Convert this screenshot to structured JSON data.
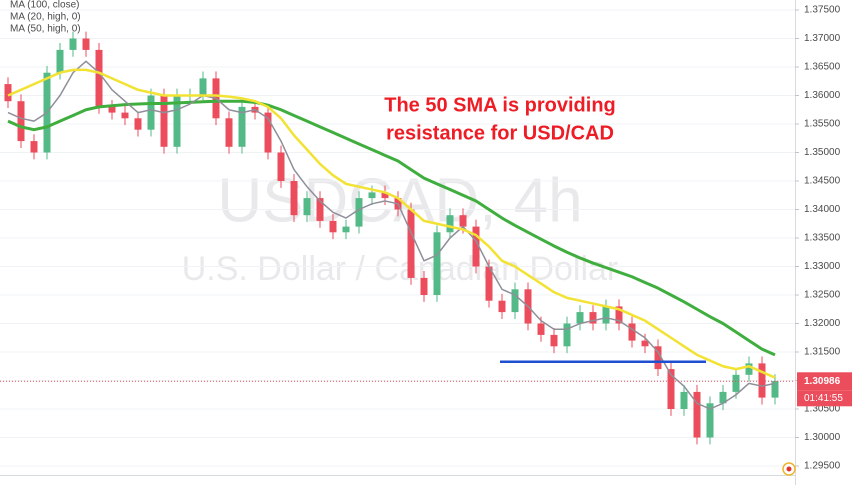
{
  "chart_data": {
    "type": "candlestick",
    "watermark": "USDCAD, 4h",
    "watermark_sub": "U.S. Dollar / Canadian Dollar",
    "annotation": [
      "The 50 SMA is providing",
      "resistance for USD/CAD"
    ],
    "open": [
      1.362,
      1.359,
      1.352,
      1.35,
      1.364,
      1.368,
      1.37,
      1.368,
      1.358,
      1.357,
      1.356,
      1.354,
      1.36,
      1.351,
      1.36,
      1.36,
      1.363,
      1.356,
      1.351,
      1.358,
      1.357,
      1.35,
      1.345,
      1.339,
      1.342,
      1.338,
      1.336,
      1.337,
      1.342,
      1.343,
      1.342,
      1.34,
      1.328,
      1.325,
      1.336,
      1.339,
      1.337,
      1.33,
      1.324,
      1.322,
      1.326,
      1.32,
      1.318,
      1.316,
      1.32,
      1.322,
      1.32,
      1.323,
      1.32,
      1.317,
      1.316,
      1.312,
      1.305,
      1.308,
      1.3,
      1.306,
      1.308,
      1.311,
      1.313,
      1.307
    ],
    "high": [
      1.3632,
      1.3602,
      1.3532,
      1.3652,
      1.3692,
      1.3712,
      1.3712,
      1.3692,
      1.3592,
      1.3582,
      1.3572,
      1.3612,
      1.3612,
      1.3612,
      1.3612,
      1.3642,
      1.3642,
      1.3572,
      1.3592,
      1.3592,
      1.3582,
      1.3512,
      1.3462,
      1.3432,
      1.3432,
      1.3392,
      1.3382,
      1.3432,
      1.3442,
      1.3442,
      1.3432,
      1.3412,
      1.3292,
      1.3372,
      1.3402,
      1.3402,
      1.3382,
      1.3312,
      1.3252,
      1.3272,
      1.3272,
      1.3212,
      1.3192,
      1.3212,
      1.3232,
      1.3232,
      1.3242,
      1.3242,
      1.3212,
      1.3182,
      1.3172,
      1.3132,
      1.3092,
      1.3092,
      1.3072,
      1.3092,
      1.3122,
      1.3142,
      1.3142,
      1.3111
    ],
    "low": [
      1.3578,
      1.3508,
      1.3488,
      1.3488,
      1.3628,
      1.3668,
      1.3668,
      1.3568,
      1.3558,
      1.3548,
      1.3528,
      1.3528,
      1.3498,
      1.3498,
      1.3588,
      1.3588,
      1.3548,
      1.3498,
      1.3498,
      1.3558,
      1.3488,
      1.3438,
      1.3378,
      1.3378,
      1.3368,
      1.3348,
      1.3348,
      1.3358,
      1.3408,
      1.3408,
      1.3388,
      1.3268,
      1.3238,
      1.3238,
      1.3348,
      1.3358,
      1.3288,
      1.3228,
      1.3208,
      1.3208,
      1.3188,
      1.3168,
      1.3148,
      1.3148,
      1.3188,
      1.3188,
      1.3188,
      1.3188,
      1.3158,
      1.3148,
      1.3108,
      1.3038,
      1.3038,
      1.2988,
      1.2988,
      1.3048,
      1.3068,
      1.3098,
      1.3058,
      1.3058
    ],
    "close": [
      1.359,
      1.352,
      1.35,
      1.364,
      1.368,
      1.37,
      1.368,
      1.358,
      1.357,
      1.356,
      1.354,
      1.36,
      1.351,
      1.36,
      1.36,
      1.363,
      1.356,
      1.351,
      1.358,
      1.357,
      1.35,
      1.345,
      1.339,
      1.342,
      1.338,
      1.336,
      1.337,
      1.342,
      1.343,
      1.342,
      1.34,
      1.328,
      1.325,
      1.336,
      1.339,
      1.337,
      1.33,
      1.324,
      1.322,
      1.326,
      1.32,
      1.318,
      1.316,
      1.32,
      1.322,
      1.32,
      1.323,
      1.32,
      1.317,
      1.316,
      1.312,
      1.305,
      1.308,
      1.3,
      1.306,
      1.308,
      1.311,
      1.313,
      1.307,
      1.3099
    ],
    "up_color": "#53b987",
    "down_color": "#eb4d5c",
    "series": [
      {
        "name": "MA (100, close)",
        "color": "#3fae3f",
        "values": [
          1.3555,
          1.3545,
          1.354,
          1.3545,
          1.3555,
          1.3565,
          1.3575,
          1.358,
          1.3582,
          1.3584,
          1.3585,
          1.3586,
          1.3586,
          1.3587,
          1.3588,
          1.3589,
          1.359,
          1.359,
          1.359,
          1.3588,
          1.3583,
          1.3575,
          1.3565,
          1.3555,
          1.3545,
          1.3535,
          1.3525,
          1.3515,
          1.3505,
          1.3495,
          1.3485,
          1.347,
          1.3455,
          1.3445,
          1.3435,
          1.3425,
          1.3415,
          1.34,
          1.3385,
          1.3372,
          1.336,
          1.3348,
          1.3336,
          1.3325,
          1.3315,
          1.3306,
          1.3298,
          1.329,
          1.3282,
          1.3272,
          1.3262,
          1.325,
          1.3238,
          1.3225,
          1.3212,
          1.32,
          1.3185,
          1.317,
          1.3155,
          1.3145
        ]
      },
      {
        "name": "MA (20, high, 0)",
        "color": "#8f8f9a",
        "values": [
          1.357,
          1.356,
          1.3555,
          1.357,
          1.36,
          1.364,
          1.366,
          1.364,
          1.361,
          1.359,
          1.357,
          1.3575,
          1.357,
          1.3575,
          1.3585,
          1.36,
          1.3595,
          1.3575,
          1.357,
          1.3575,
          1.356,
          1.352,
          1.347,
          1.344,
          1.3415,
          1.3395,
          1.3385,
          1.34,
          1.341,
          1.3415,
          1.341,
          1.336,
          1.331,
          1.332,
          1.335,
          1.337,
          1.3345,
          1.33,
          1.326,
          1.325,
          1.323,
          1.3205,
          1.319,
          1.319,
          1.32,
          1.3205,
          1.321,
          1.3205,
          1.319,
          1.3175,
          1.315,
          1.311,
          1.309,
          1.306,
          1.305,
          1.306,
          1.3075,
          1.3095,
          1.309,
          1.3095
        ]
      },
      {
        "name": "MA (50, high, 0)",
        "color": "#f2e233",
        "values": [
          1.36,
          1.361,
          1.362,
          1.363,
          1.364,
          1.3645,
          1.3645,
          1.364,
          1.363,
          1.362,
          1.361,
          1.3605,
          1.36,
          1.36,
          1.36,
          1.36,
          1.36,
          1.3598,
          1.3595,
          1.359,
          1.358,
          1.356,
          1.353,
          1.3505,
          1.348,
          1.346,
          1.3445,
          1.344,
          1.3435,
          1.343,
          1.342,
          1.34,
          1.338,
          1.3375,
          1.337,
          1.3365,
          1.3355,
          1.3335,
          1.331,
          1.33,
          1.3285,
          1.327,
          1.3255,
          1.3245,
          1.324,
          1.3235,
          1.323,
          1.3225,
          1.3215,
          1.3205,
          1.319,
          1.3175,
          1.316,
          1.3145,
          1.3135,
          1.3125,
          1.312,
          1.3125,
          1.3115,
          1.3105
        ]
      }
    ],
    "support_line": {
      "value": 1.3133,
      "color": "#1f4fd1"
    },
    "last_price": 1.30986,
    "countdown": "01:41:55",
    "ylim": [
      1.295,
      1.375
    ],
    "yticks": [
      {
        "value": 1.295,
        "label": "1.29500"
      },
      {
        "value": 1.3,
        "label": "1.30000"
      },
      {
        "value": 1.305,
        "label": "1.30500"
      },
      {
        "value": 1.31,
        "label": "1.31000"
      },
      {
        "value": 1.315,
        "label": "1.31500"
      },
      {
        "value": 1.32,
        "label": "1.32000"
      },
      {
        "value": 1.325,
        "label": "1.32500"
      },
      {
        "value": 1.33,
        "label": "1.33000"
      },
      {
        "value": 1.335,
        "label": "1.33500"
      },
      {
        "value": 1.34,
        "label": "1.34000"
      },
      {
        "value": 1.345,
        "label": "1.34500"
      },
      {
        "value": 1.35,
        "label": "1.35000"
      },
      {
        "value": 1.355,
        "label": "1.35500"
      },
      {
        "value": 1.36,
        "label": "1.36000"
      },
      {
        "value": 1.365,
        "label": "1.36500"
      },
      {
        "value": 1.37,
        "label": "1.37000"
      },
      {
        "value": 1.375,
        "label": "1.37500"
      }
    ],
    "grid": true
  }
}
